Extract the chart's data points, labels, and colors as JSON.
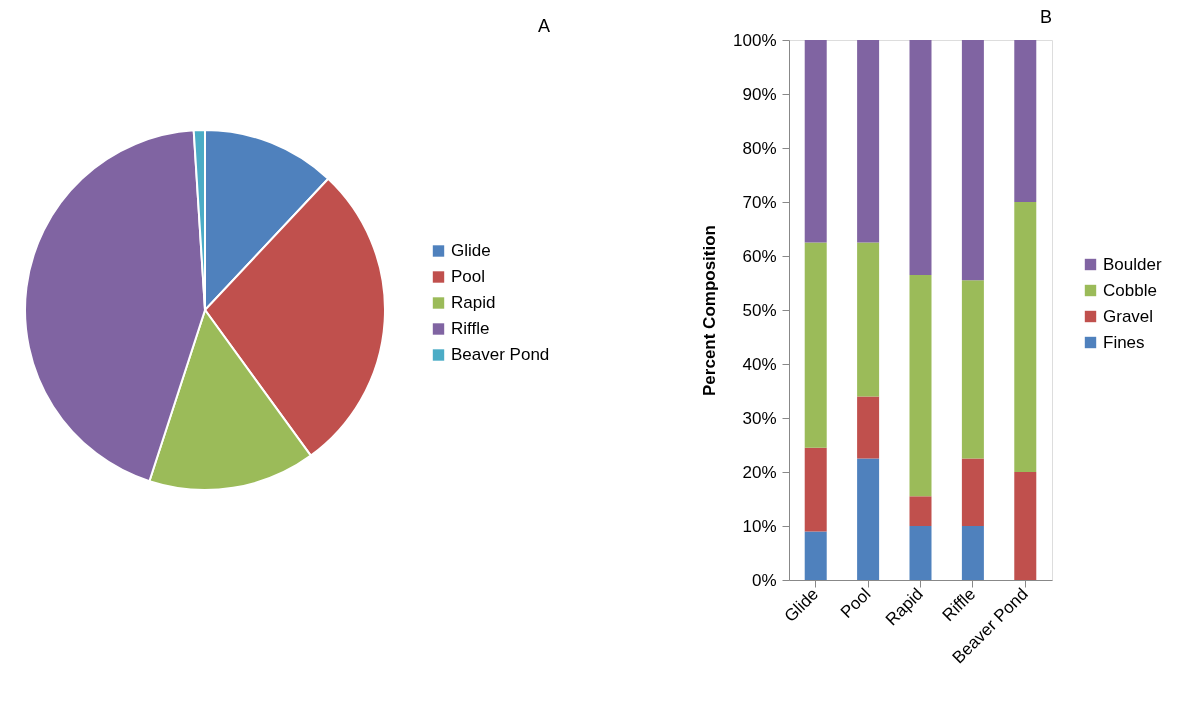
{
  "chart_data": [
    {
      "type": "pie",
      "title": "A",
      "categories": [
        "Glide",
        "Pool",
        "Rapid",
        "Riffle",
        "Beaver Pond"
      ],
      "values": [
        12,
        28,
        15,
        44,
        1
      ],
      "colors": [
        "#4f81bd",
        "#c0504d",
        "#9bbb59",
        "#8064a2",
        "#4bacc6"
      ],
      "legend": "right"
    },
    {
      "type": "bar",
      "title": "B",
      "ylabel": "Percent Composition",
      "categories": [
        "Glide",
        "Pool",
        "Rapid",
        "Riffle",
        "Beaver Pond"
      ],
      "stacked": true,
      "series": [
        {
          "name": "Fines",
          "color": "#4f81bd",
          "values": [
            9,
            22.5,
            10,
            10,
            0
          ]
        },
        {
          "name": "Gravel",
          "color": "#c0504d",
          "values": [
            15.5,
            11.5,
            5.5,
            12.5,
            20
          ]
        },
        {
          "name": "Cobble",
          "color": "#9bbb59",
          "values": [
            38,
            28.5,
            41,
            33,
            50
          ]
        },
        {
          "name": "Boulder",
          "color": "#8064a2",
          "values": [
            37.5,
            37.5,
            43.5,
            44.5,
            30
          ]
        }
      ],
      "ylim": [
        0,
        100
      ],
      "yticks": [
        {
          "value": 0,
          "label": "0%"
        },
        {
          "value": 10,
          "label": "10%"
        },
        {
          "value": 20,
          "label": "20%"
        },
        {
          "value": 30,
          "label": "30%"
        },
        {
          "value": 40,
          "label": "40%"
        },
        {
          "value": 50,
          "label": "50%"
        },
        {
          "value": 60,
          "label": "60%"
        },
        {
          "value": 70,
          "label": "70%"
        },
        {
          "value": 80,
          "label": "80%"
        },
        {
          "value": 90,
          "label": "90%"
        },
        {
          "value": 100,
          "label": "100%"
        }
      ],
      "legend": "right"
    }
  ]
}
